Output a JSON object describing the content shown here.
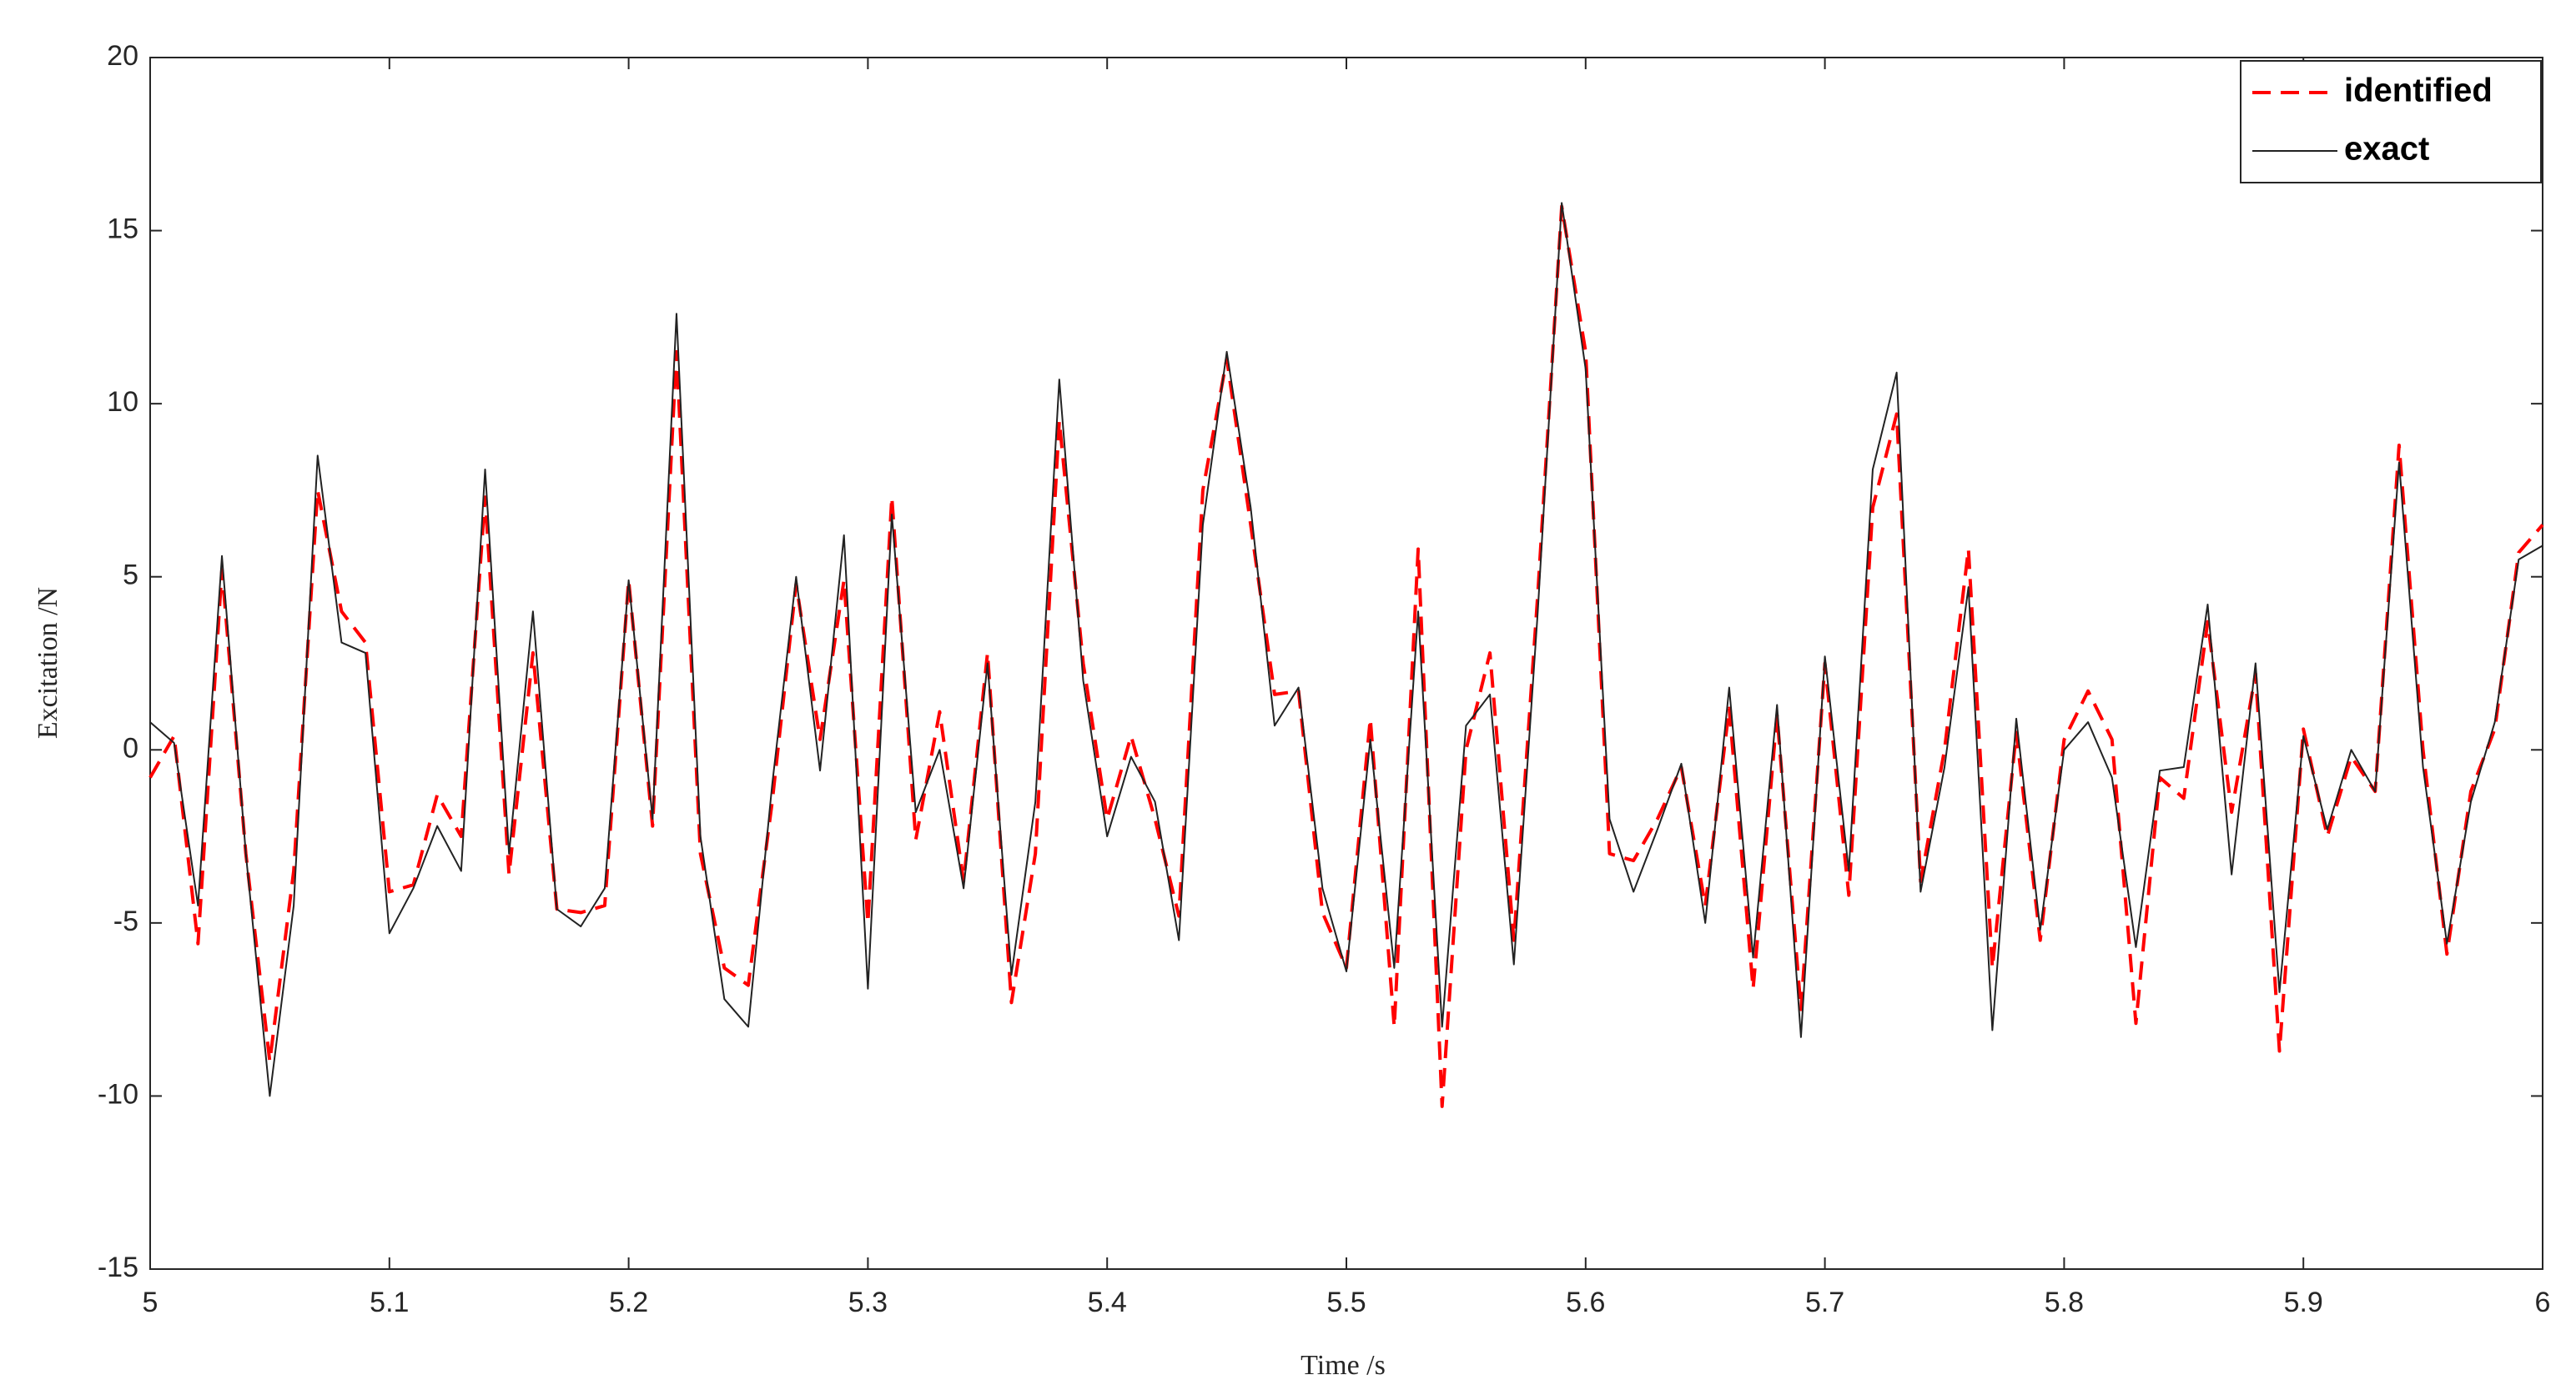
{
  "chart_data": {
    "type": "line",
    "xlabel": "Time /s",
    "ylabel": "Excitation /N",
    "x": [
      5,
      5.01,
      5.02,
      5.03,
      5.04,
      5.05,
      5.06,
      5.07,
      5.08,
      5.09,
      5.1,
      5.11,
      5.12,
      5.13,
      5.14,
      5.15,
      5.16,
      5.17,
      5.18,
      5.19,
      5.2,
      5.21,
      5.22,
      5.23,
      5.24,
      5.25,
      5.26,
      5.27,
      5.28,
      5.29,
      5.3,
      5.31,
      5.32,
      5.33,
      5.34,
      5.35,
      5.36,
      5.37,
      5.38,
      5.39,
      5.4,
      5.41,
      5.42,
      5.43,
      5.44,
      5.45,
      5.46,
      5.47,
      5.48,
      5.49,
      5.5,
      5.51,
      5.52,
      5.53,
      5.54,
      5.55,
      5.56,
      5.57,
      5.58,
      5.59,
      5.6,
      5.61,
      5.62,
      5.63,
      5.64,
      5.65,
      5.66,
      5.67,
      5.68,
      5.69,
      5.7,
      5.71,
      5.72,
      5.73,
      5.74,
      5.75,
      5.76,
      5.77,
      5.78,
      5.79,
      5.8,
      5.81,
      5.82,
      5.83,
      5.84,
      5.85,
      5.86,
      5.87,
      5.88,
      5.89,
      5.9,
      5.91,
      5.92,
      5.93,
      5.94,
      5.95,
      5.96,
      5.97,
      5.98,
      5.99,
      6
    ],
    "series": [
      {
        "name": "identified",
        "color": "#ff0000",
        "dash": true,
        "values": [
          -0.8,
          0.4,
          -5.6,
          5.2,
          -3,
          -9,
          -3.5,
          7.5,
          4,
          3.1,
          -4.1,
          -3.9,
          -1.3,
          -2.5,
          7.3,
          -3.6,
          2.8,
          -4.6,
          -4.7,
          -4.5,
          4.9,
          -2.2,
          11.5,
          -3,
          -6.3,
          -6.8,
          -1.5,
          4.8,
          0.3,
          4.9,
          -5,
          7.3,
          -2.6,
          1.1,
          -3.8,
          2.8,
          -7.3,
          -3,
          9.5,
          2.5,
          -2,
          0.4,
          -2,
          -4.8,
          7.5,
          11.3,
          6.5,
          1.6,
          1.7,
          -4.7,
          -6.3,
          0.9,
          -8,
          5.8,
          -10.3,
          0,
          2.8,
          -5.5,
          4.5,
          15.7,
          11.5,
          -3,
          -3.2,
          -2,
          -0.5,
          -4.5,
          1.2,
          -6.9,
          1,
          -7.5,
          2.5,
          -4.2,
          7,
          9.7,
          -3.8,
          0,
          5.8,
          -6.3,
          0.5,
          -5.5,
          0.3,
          1.7,
          0.3,
          -7.9,
          -0.8,
          -1.4,
          3.7,
          -1.8,
          2.2,
          -8.7,
          0.6,
          -2.5,
          -0.2,
          -1.2,
          8.8,
          0,
          -5.9,
          -1.2,
          0.6,
          5.7,
          6.5
        ]
      },
      {
        "name": "exact",
        "color": "#222222",
        "dash": false,
        "values": [
          0.8,
          0.2,
          -4.5,
          5.6,
          -3,
          -10,
          -4.5,
          8.5,
          3.1,
          2.8,
          -5.3,
          -4,
          -2.2,
          -3.5,
          8.1,
          -3,
          4,
          -4.6,
          -5.1,
          -4,
          4.9,
          -2,
          12.6,
          -2.5,
          -7.2,
          -8,
          -1,
          5,
          -0.6,
          6.2,
          -6.9,
          6.8,
          -1.8,
          0,
          -4,
          2.5,
          -6.5,
          -1.5,
          10.7,
          2,
          -2.5,
          -0.2,
          -1.5,
          -5.5,
          6.5,
          11.5,
          7,
          0.7,
          1.8,
          -4,
          -6.4,
          0.3,
          -6.3,
          4,
          -8,
          0.7,
          1.6,
          -6.2,
          4,
          15.8,
          11,
          -2,
          -4.1,
          -2.3,
          -0.4,
          -5,
          1.8,
          -6,
          1.3,
          -8.3,
          2.7,
          -3.5,
          8.1,
          10.9,
          -4.1,
          -0.5,
          4.7,
          -8.1,
          0.9,
          -5.2,
          0,
          0.8,
          -0.8,
          -5.7,
          -0.6,
          -0.5,
          4.2,
          -3.6,
          2.5,
          -7,
          0.4,
          -2.3,
          0,
          -1.2,
          8.3,
          -0.5,
          -5.6,
          -1.5,
          0.8,
          5.5,
          5.9
        ]
      }
    ],
    "xlim": [
      5,
      6
    ],
    "xticks": [
      5,
      5.1,
      5.2,
      5.3,
      5.4,
      5.5,
      5.6,
      5.7,
      5.8,
      5.9,
      6
    ],
    "ylim": [
      -15,
      20
    ],
    "yticks": [
      -15,
      -10,
      -5,
      0,
      5,
      10,
      15,
      20
    ],
    "grid": false,
    "legend": "upper right"
  }
}
